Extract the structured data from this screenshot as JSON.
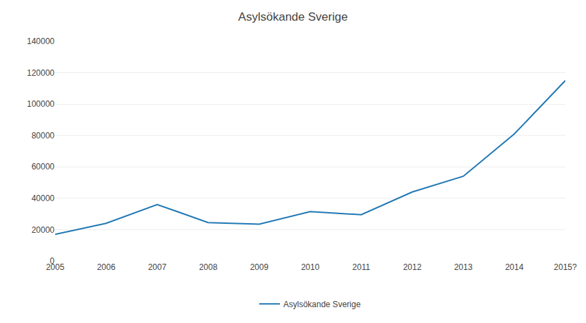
{
  "chart_data": {
    "type": "line",
    "title": "Asylsökande Sverige",
    "categories": [
      "2005",
      "2006",
      "2007",
      "2008",
      "2009",
      "2010",
      "2011",
      "2012",
      "2013",
      "2014",
      "2015?"
    ],
    "series": [
      {
        "name": "Asylsökande Sverige",
        "values": [
          17000,
          24000,
          36000,
          24500,
          23500,
          31500,
          29500,
          44000,
          54000,
          81000,
          115000
        ]
      }
    ],
    "ylim": [
      0,
      140000
    ],
    "yticks": [
      0,
      20000,
      40000,
      60000,
      80000,
      100000,
      120000,
      140000
    ],
    "grid": true,
    "legend": "bottom"
  }
}
